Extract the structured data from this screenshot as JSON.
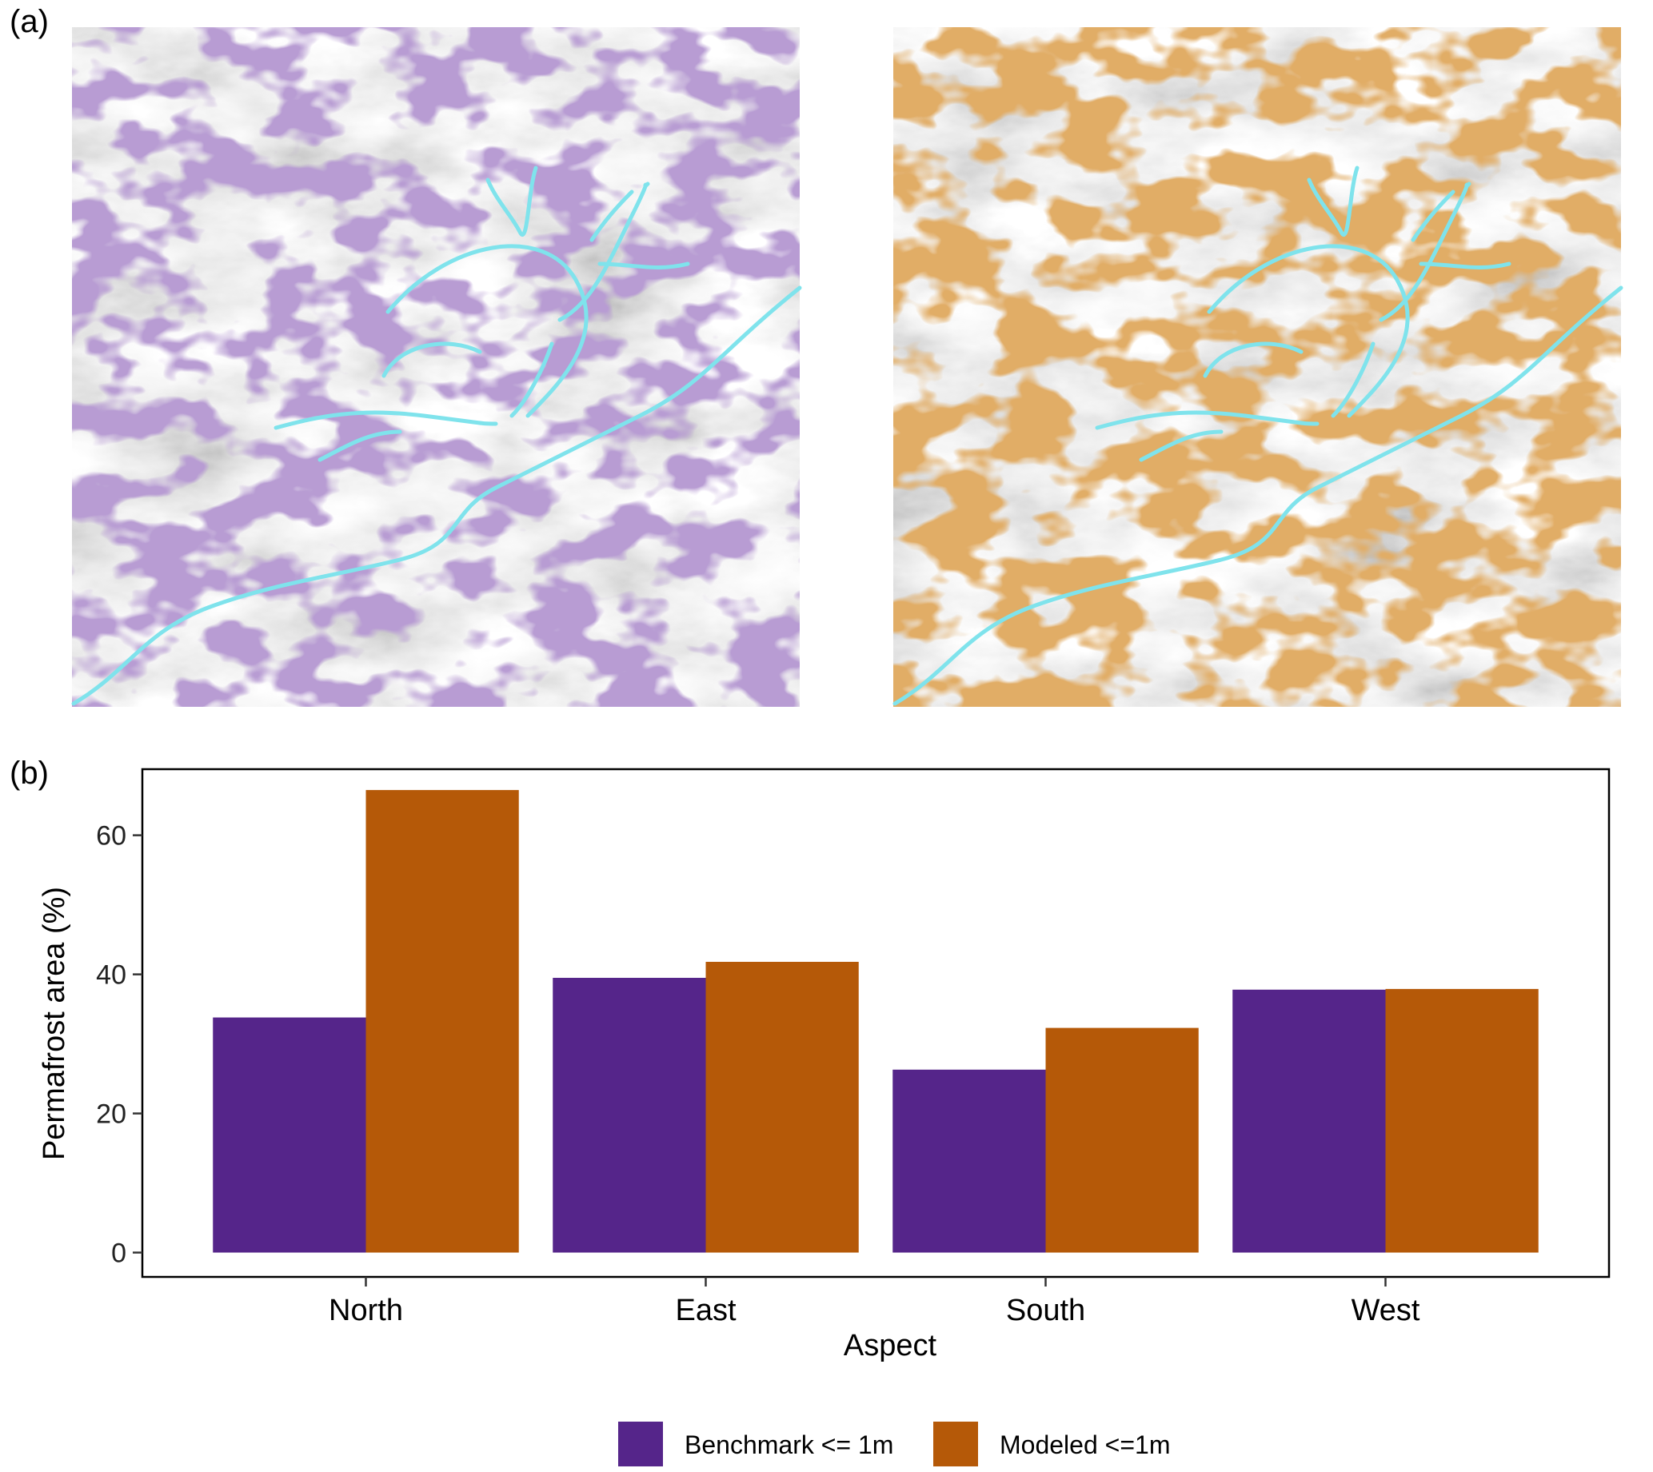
{
  "panels": {
    "a_label": "(a)",
    "b_label": "(b)"
  },
  "map_colors": {
    "benchmark_overlay": "#7a55a6",
    "modeled_overlay": "#c06a22",
    "hillshade_light": "#cfcfcf",
    "hillshade_dark": "#8a8a8a",
    "stream": "#7fe3ec"
  },
  "chart_data": {
    "type": "bar",
    "xlabel": "Aspect",
    "ylabel": "Permafrost area (%)",
    "categories": [
      "North",
      "East",
      "South",
      "West"
    ],
    "series": [
      {
        "name": "Benchmark <= 1m",
        "values": [
          33.8,
          39.5,
          26.3,
          37.8
        ],
        "color": "#55258a"
      },
      {
        "name": "Modeled <=1m",
        "values": [
          66.5,
          41.8,
          32.3,
          37.9
        ],
        "color": "#b55908"
      }
    ],
    "ylim": [
      -3.5,
      69.5
    ],
    "yticks": [
      0,
      20,
      40,
      60
    ],
    "grid": false,
    "legend_position": "bottom"
  }
}
